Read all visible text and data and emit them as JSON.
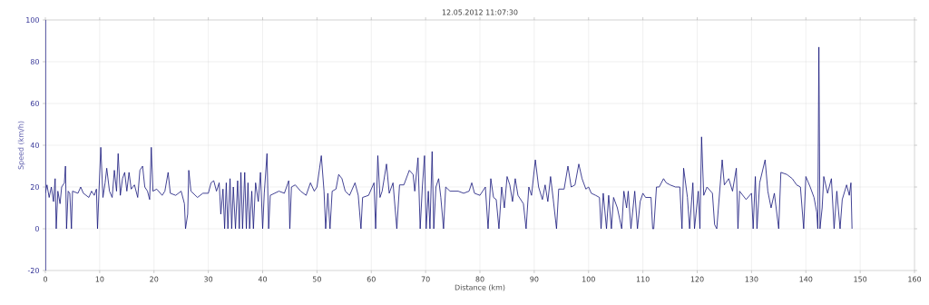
{
  "chart_data": {
    "type": "line",
    "title": "12.05.2012 11:07:30",
    "xlabel": "Distance (km)",
    "ylabel": "Speed (km/h)",
    "color": "#14147a",
    "grid": true,
    "xlim": [
      0,
      160
    ],
    "ylim": [
      -20,
      100
    ],
    "xticks": [
      0,
      10,
      20,
      30,
      40,
      50,
      60,
      70,
      80,
      90,
      100,
      110,
      120,
      130,
      140,
      150,
      160
    ],
    "yticks": [
      -20,
      0,
      20,
      40,
      60,
      80,
      100
    ],
    "x": [
      0,
      0.3,
      0.7,
      1.1,
      1.5,
      1.8,
      2.0,
      2.3,
      2.7,
      3.0,
      3.5,
      3.7,
      3.9,
      4.2,
      4.5,
      4.8,
      5.0,
      6,
      6.5,
      7,
      8,
      8.5,
      9,
      9.4,
      9.6,
      9.9,
      10.2,
      10.6,
      11,
      11.3,
      11.8,
      12.3,
      12.7,
      13.1,
      13.4,
      13.8,
      14.2,
      14.6,
      15,
      15.4,
      15.8,
      16.4,
      17,
      17.4,
      17.9,
      18.3,
      18.8,
      19.2,
      19.5,
      19.8,
      20.5,
      21.5,
      22,
      22.6,
      23,
      24,
      25,
      25.6,
      25.8,
      26.2,
      26.4,
      26.8,
      28,
      29,
      30,
      30.5,
      31,
      31.5,
      32,
      32.3,
      32.7,
      33,
      33.3,
      33.6,
      34,
      34.3,
      34.6,
      35,
      35.4,
      35.7,
      36,
      36.3,
      36.7,
      37,
      37.3,
      37.6,
      38,
      38.3,
      38.7,
      39.2,
      39.6,
      40,
      40.3,
      40.8,
      41.1,
      41.4,
      43,
      44,
      44.8,
      45,
      45.3,
      46,
      47,
      48,
      48.8,
      49.5,
      50,
      50.8,
      51.3,
      51.6,
      52,
      52.4,
      52.8,
      53.5,
      54,
      54.6,
      55.2,
      56,
      57,
      57.6,
      58.1,
      58.4,
      59.5,
      60.5,
      60.8,
      61.2,
      61.6,
      62,
      62.8,
      63.3,
      64,
      64.7,
      65.2,
      66,
      67,
      67.7,
      68,
      68.6,
      69,
      69.4,
      69.8,
      70.1,
      70.5,
      70.8,
      71.2,
      71.5,
      71.9,
      72.4,
      72.8,
      73.3,
      73.7,
      74.5,
      76,
      77,
      78,
      78.5,
      79,
      80,
      81,
      81.5,
      82,
      82.5,
      83,
      83.5,
      84,
      84.5,
      85,
      85.5,
      86,
      86.5,
      87,
      88,
      88.5,
      89,
      89.5,
      90.2,
      90.8,
      91.5,
      92,
      92.5,
      93,
      93.5,
      94.1,
      94.5,
      95.5,
      96.2,
      96.8,
      97.5,
      98.2,
      98.8,
      99.5,
      100,
      100.5,
      101.3,
      102,
      102.3,
      102.7,
      103.3,
      103.7,
      104.2,
      104.6,
      105.3,
      106.1,
      106.5,
      107,
      107.3,
      107.8,
      108.5,
      109,
      109.5,
      110,
      110.5,
      111.5,
      111.8,
      112,
      112.5,
      113,
      113.8,
      114.3,
      115,
      116,
      116.8,
      117.2,
      117.5,
      118.2,
      118.6,
      119.2,
      119.5,
      120.2,
      120.5,
      120.8,
      121.2,
      121.8,
      122.8,
      123.2,
      123.6,
      124.2,
      124.6,
      125,
      125.8,
      126.5,
      127.2,
      127.5,
      127.8,
      129,
      130,
      130.3,
      130.7,
      131,
      131.5,
      132.5,
      133,
      133.6,
      134.2,
      135,
      135.4,
      136.5,
      137.5,
      138.3,
      139,
      139.6,
      140,
      140.8,
      141.5,
      142,
      142.2,
      142.4,
      142.6,
      143,
      143.3,
      144,
      144.7,
      145.2,
      145.7,
      146.3,
      146.7,
      147.5,
      148,
      148.3,
      148.5
    ],
    "values": [
      17,
      21,
      15,
      20,
      13,
      24,
      0,
      18,
      12,
      20,
      22,
      30,
      0,
      18,
      17,
      0,
      18,
      17,
      20,
      17,
      15,
      18,
      16,
      19,
      0,
      20,
      39,
      15,
      22,
      29,
      18,
      15,
      28,
      18,
      36,
      16,
      24,
      27,
      18,
      27,
      19,
      21,
      15,
      28,
      30,
      20,
      18,
      14,
      39,
      18,
      19,
      16,
      18,
      27,
      17,
      16,
      18,
      12,
      0,
      7,
      28,
      18,
      15,
      17,
      17,
      22,
      23,
      18,
      22,
      7,
      19,
      0,
      22,
      0,
      24,
      0,
      20,
      0,
      23,
      0,
      27,
      0,
      27,
      0,
      22,
      0,
      18,
      0,
      22,
      13,
      27,
      0,
      17,
      36,
      0,
      16,
      18,
      17,
      23,
      0,
      20,
      21,
      18,
      16,
      22,
      18,
      20,
      35,
      18,
      0,
      17,
      0,
      18,
      19,
      26,
      24,
      18,
      16,
      22,
      16,
      0,
      15,
      16,
      22,
      0,
      35,
      15,
      18,
      31,
      17,
      22,
      0,
      21,
      21,
      28,
      26,
      18,
      34,
      0,
      20,
      35,
      0,
      18,
      0,
      37,
      0,
      20,
      24,
      15,
      0,
      20,
      18,
      18,
      17,
      18,
      22,
      17,
      16,
      20,
      0,
      24,
      15,
      14,
      0,
      20,
      10,
      25,
      21,
      13,
      24,
      16,
      12,
      0,
      20,
      16,
      33,
      20,
      14,
      21,
      13,
      25,
      14,
      0,
      19,
      19,
      30,
      20,
      21,
      31,
      24,
      19,
      20,
      17,
      16,
      15,
      0,
      17,
      0,
      16,
      0,
      15,
      10,
      0,
      18,
      10,
      18,
      0,
      18,
      0,
      13,
      17,
      15,
      15,
      0,
      0,
      20,
      20,
      24,
      22,
      21,
      20,
      20,
      0,
      29,
      15,
      0,
      22,
      0,
      18,
      0,
      44,
      16,
      20,
      17,
      2,
      0,
      20,
      33,
      21,
      24,
      18,
      29,
      0,
      18,
      14,
      17,
      0,
      25,
      0,
      22,
      33,
      18,
      10,
      17,
      0,
      27,
      26,
      24,
      21,
      20,
      0,
      25,
      20,
      15,
      8,
      0,
      87,
      0,
      10,
      25,
      17,
      24,
      0,
      18,
      0,
      14,
      21,
      16,
      22,
      0
    ]
  }
}
